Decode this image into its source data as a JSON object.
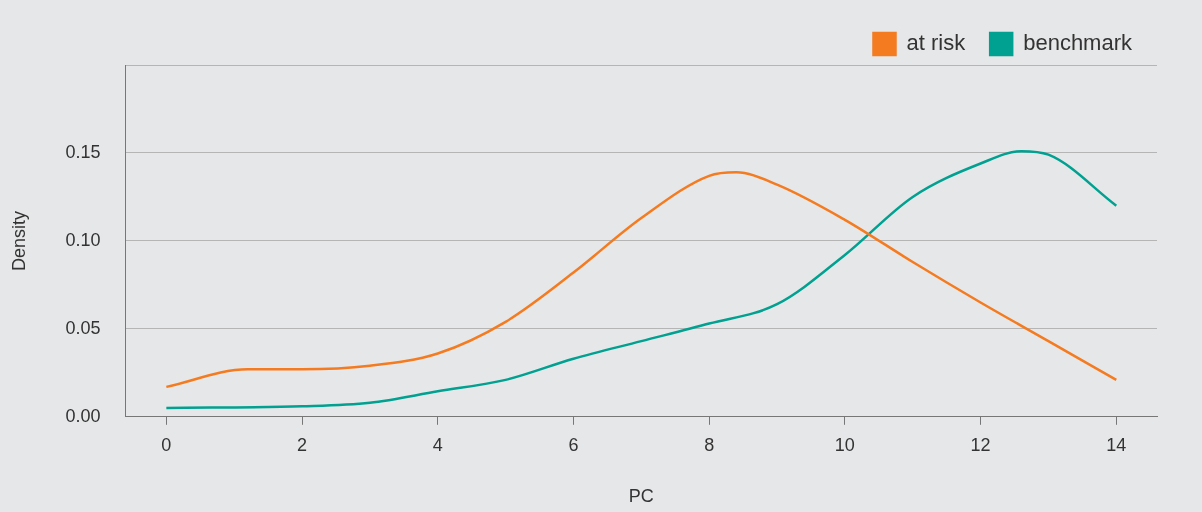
{
  "chart_data": {
    "type": "line",
    "xlabel": "PC",
    "ylabel": "Density",
    "xlim": [
      -0.6,
      14.6
    ],
    "xticks": [
      0,
      2,
      4,
      6,
      8,
      10,
      12,
      14
    ],
    "ylim": [
      0,
      0.2
    ],
    "yticks": [
      {
        "value": 0,
        "label": "0.00"
      },
      {
        "value": 0.05,
        "label": "0.05"
      },
      {
        "value": 0.1,
        "label": "0.10"
      },
      {
        "value": 0.15,
        "label": "0.15"
      },
      {
        "value": 0.2,
        "label": null
      }
    ],
    "grid": "y",
    "legend": "top right",
    "marker": "none",
    "line_style": "solid",
    "series": [
      {
        "name": "at risk",
        "color": "#f47b20",
        "x": [
          0,
          1.2,
          2,
          3,
          4,
          5,
          6,
          7,
          8,
          8.4,
          9,
          10,
          11,
          12,
          13,
          14
        ],
        "values": [
          0.017,
          0.027,
          0.027,
          0.029,
          0.036,
          0.054,
          0.082,
          0.113,
          0.137,
          0.139,
          0.132,
          0.112,
          0.088,
          0.065,
          0.043,
          0.021
        ]
      },
      {
        "name": "benchmark",
        "color": "#00a190",
        "x": [
          0,
          2,
          3,
          4,
          5,
          6,
          7,
          8,
          9,
          10,
          11,
          12,
          12.6,
          13,
          14
        ],
        "values": [
          0.005,
          0.006,
          0.008,
          0.0145,
          0.021,
          0.033,
          0.043,
          0.053,
          0.064,
          0.092,
          0.125,
          0.144,
          0.151,
          0.149,
          0.12
        ]
      }
    ]
  }
}
